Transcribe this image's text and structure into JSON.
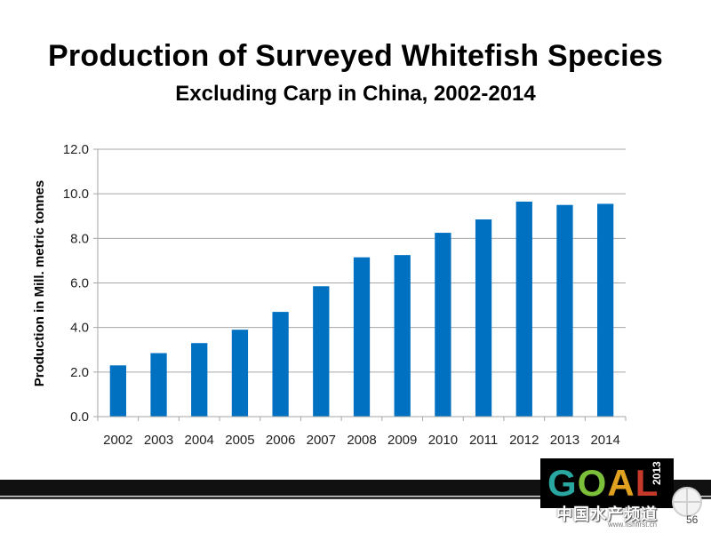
{
  "slide": {
    "title": "Production of Surveyed Whitefish Species",
    "subtitle": "Excluding Carp in China, 2002-2014",
    "page_number": "56"
  },
  "logo": {
    "letters": [
      "G",
      "O",
      "A",
      "L"
    ],
    "year": "2013"
  },
  "watermark": {
    "text": "中国水产频道",
    "url": "www.fishfirst.cn"
  },
  "colors": {
    "bar": "#0070C0",
    "grid": "#A6A6A6",
    "band": "#111111"
  },
  "chart_data": {
    "type": "bar",
    "title": "",
    "xlabel": "",
    "ylabel": "Production in Mill. metric tonnes",
    "categories": [
      "2002",
      "2003",
      "2004",
      "2005",
      "2006",
      "2007",
      "2008",
      "2009",
      "2010",
      "2011",
      "2012",
      "2013",
      "2014"
    ],
    "values": [
      2.3,
      2.85,
      3.3,
      3.9,
      4.7,
      5.85,
      7.15,
      7.25,
      8.25,
      8.85,
      9.65,
      9.5,
      9.55
    ],
    "ylim": [
      0,
      12
    ],
    "yticks": [
      "0.0",
      "2.0",
      "4.0",
      "6.0",
      "8.0",
      "10.0",
      "12.0"
    ],
    "grid": true,
    "legend": "none"
  }
}
